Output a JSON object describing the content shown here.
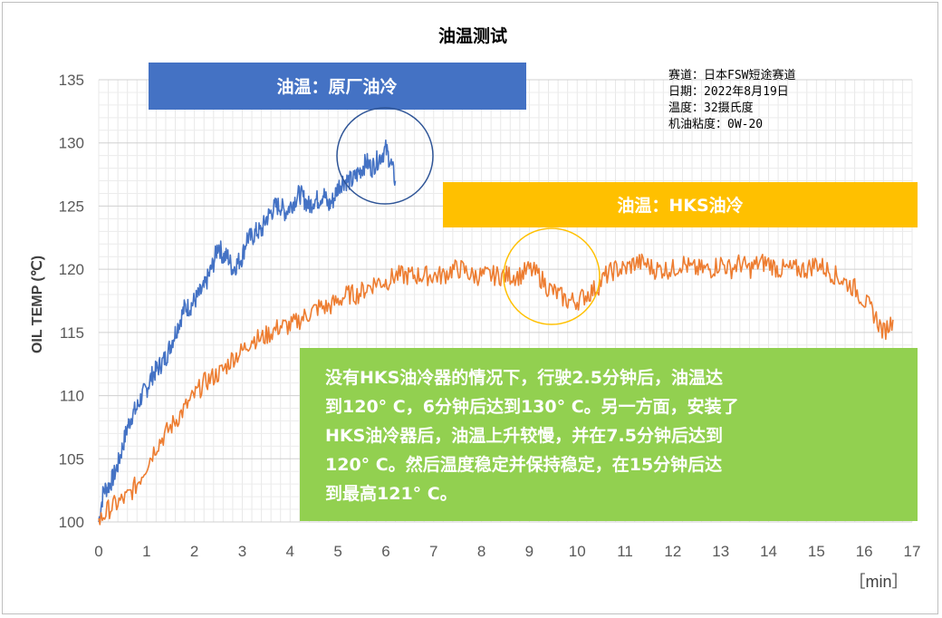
{
  "chart_data": {
    "type": "line",
    "title": "油温测试",
    "ylabel": "OIL TEMP (℃)",
    "xlabel": "",
    "x_unit_label": "［min］",
    "xlim": [
      0,
      17
    ],
    "ylim": [
      100,
      135
    ],
    "x_ticks": [
      "0",
      "1",
      "2",
      "3",
      "4",
      "5",
      "6",
      "7",
      "8",
      "9",
      "10",
      "11",
      "12",
      "13",
      "14",
      "15",
      "16",
      "17"
    ],
    "y_ticks": [
      "100",
      "105",
      "110",
      "115",
      "120",
      "125",
      "130",
      "135"
    ],
    "grid": true,
    "series": [
      {
        "color": "#4472c4",
        "x": [
          0,
          0.1,
          0.2,
          0.3,
          0.4,
          0.5,
          0.6,
          0.7,
          0.8,
          0.9,
          1.0,
          1.1,
          1.2,
          1.3,
          1.4,
          1.5,
          1.6,
          1.7,
          1.8,
          1.9,
          2.0,
          2.1,
          2.2,
          2.3,
          2.4,
          2.5,
          2.6,
          2.7,
          2.8,
          2.9,
          3.0,
          3.1,
          3.2,
          3.3,
          3.4,
          3.5,
          3.6,
          3.7,
          3.8,
          3.9,
          4.0,
          4.1,
          4.2,
          4.3,
          4.4,
          4.5,
          4.6,
          4.7,
          4.8,
          4.9,
          5.0,
          5.1,
          5.2,
          5.3,
          5.4,
          5.5,
          5.6,
          5.7,
          5.8,
          5.9,
          6.0,
          6.1,
          6.2
        ],
        "values": [
          100,
          102.5,
          102.8,
          103.5,
          104.5,
          106,
          107.5,
          108.5,
          109,
          110,
          110.5,
          111.5,
          112,
          112.5,
          113,
          114,
          115,
          116,
          117,
          117,
          117.5,
          118,
          118.5,
          119.5,
          120.5,
          122,
          121,
          121,
          120,
          120.5,
          121,
          122.5,
          122.5,
          123,
          123,
          124,
          124.5,
          125,
          125,
          124.5,
          125,
          125.5,
          126,
          125.5,
          125,
          125.5,
          125.5,
          126,
          125,
          125.5,
          126.5,
          127,
          127,
          127,
          127.5,
          128,
          128.5,
          128,
          128.5,
          129,
          129.5,
          128.5,
          127
        ]
      },
      {
        "color": "#ed7d31",
        "x": [
          0,
          0.2,
          0.4,
          0.6,
          0.8,
          1.0,
          1.2,
          1.4,
          1.6,
          1.8,
          2.0,
          2.2,
          2.4,
          2.6,
          2.8,
          3.0,
          3.2,
          3.4,
          3.6,
          3.8,
          4.0,
          4.2,
          4.4,
          4.6,
          4.8,
          5.0,
          5.2,
          5.4,
          5.6,
          5.8,
          6.0,
          6.2,
          6.4,
          6.6,
          6.8,
          7.0,
          7.2,
          7.4,
          7.6,
          7.8,
          8.0,
          8.2,
          8.4,
          8.6,
          8.8,
          9.0,
          9.2,
          9.4,
          9.6,
          9.8,
          10.0,
          10.2,
          10.4,
          10.6,
          10.8,
          11.0,
          11.2,
          11.4,
          11.6,
          11.8,
          12.0,
          12.2,
          12.4,
          12.6,
          12.8,
          13.0,
          13.2,
          13.4,
          13.6,
          13.8,
          14.0,
          14.2,
          14.4,
          14.6,
          14.8,
          15.0,
          15.2,
          15.4,
          15.6,
          15.8,
          16.0,
          16.2,
          16.4,
          16.6
        ],
        "values": [
          100,
          101,
          101.5,
          102,
          103,
          104.5,
          106,
          107,
          108,
          109,
          110,
          111,
          111.5,
          112,
          113,
          113.5,
          114.5,
          114.5,
          115,
          115.5,
          115.5,
          116,
          116.5,
          117,
          117,
          117.5,
          118,
          118,
          118.5,
          119,
          119,
          119.5,
          119.5,
          119.5,
          119.5,
          119.5,
          119.5,
          120,
          120,
          119.5,
          119.5,
          119.5,
          119.5,
          119.5,
          119.5,
          120,
          119.5,
          118.5,
          118,
          117.5,
          117.5,
          118,
          118.5,
          119.5,
          120,
          120,
          120.5,
          120.5,
          120,
          120,
          120,
          120.5,
          120,
          120,
          120,
          120.5,
          120,
          120.5,
          120,
          120.5,
          120.5,
          120,
          120,
          120,
          120,
          120.5,
          120,
          119.5,
          119,
          118.5,
          117.5,
          116.5,
          115,
          116
        ]
      }
    ]
  },
  "annotations": {
    "stock_label": "油温：原厂油冷",
    "hks_label": "油温：HKS油冷",
    "info_lines": [
      "赛道：日本FSW短途赛道",
      "日期：2022年8月19日",
      "温度：32摄氏度",
      "机油粘度：0W-20"
    ],
    "note_lines": [
      "没有HKS油冷器的情况下，行驶2.5分钟后，油温达",
      "到120° C，6分钟后达到130° C。另一方面，安装了",
      "HKS油冷器后，油温上升较慢，并在7.5分钟后达到",
      "120° C。然后温度稳定并保持稳定，在15分钟后达",
      "到最高121° C。"
    ],
    "colors": {
      "stock_box": "#4472c4",
      "hks_box": "#ffc000",
      "note_box": "#92d050"
    }
  }
}
